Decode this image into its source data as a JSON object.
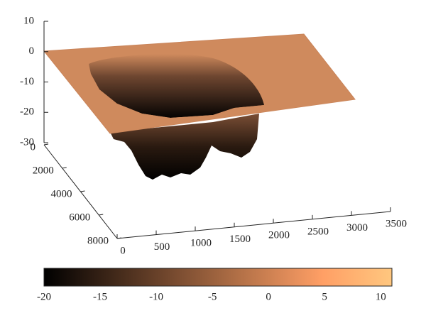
{
  "chart_data": {
    "type": "surface",
    "xlim": [
      0,
      3500
    ],
    "xticks": [
      0,
      500,
      1000,
      1500,
      2000,
      2500,
      3000,
      3500
    ],
    "ylim": [
      0,
      8000
    ],
    "yticks": [
      0,
      2000,
      4000,
      6000,
      8000
    ],
    "zlim": [
      -30,
      10
    ],
    "zticks": [
      10,
      0,
      -10,
      -20,
      -30
    ],
    "colorbar": {
      "clim": [
        -20,
        11
      ],
      "ticks": [
        -20,
        -15,
        -10,
        -5,
        0,
        5,
        10
      ],
      "colormap": "copper"
    }
  }
}
